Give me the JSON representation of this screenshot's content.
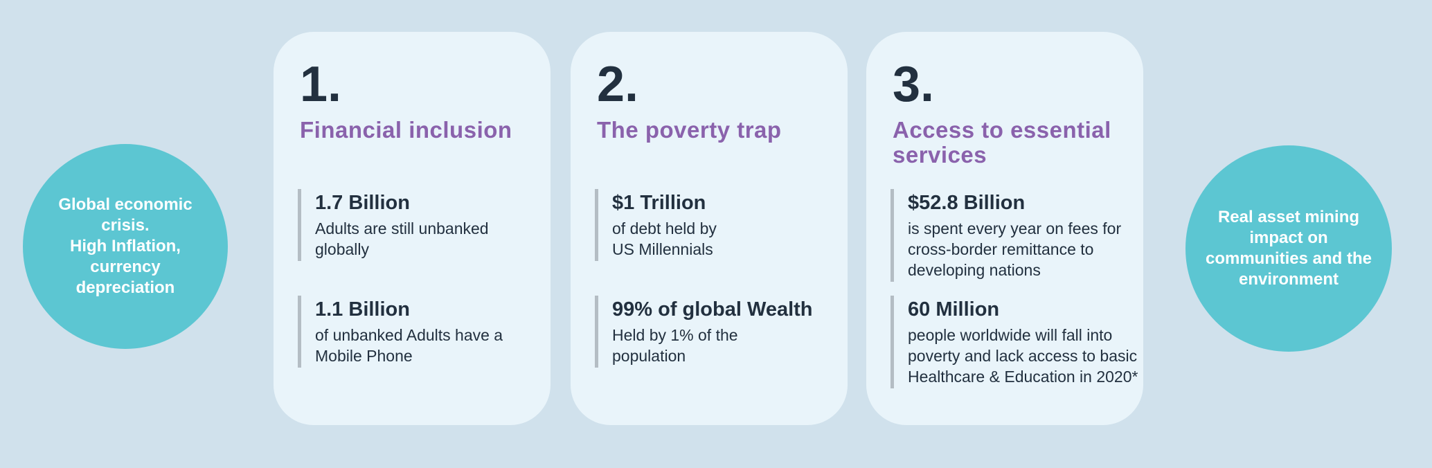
{
  "colors": {
    "bg": "#d0e1ec",
    "card": "#e9f4fa",
    "circle": "#5cc6d2",
    "circletext": "#ffffff",
    "heading": "#8a62ac",
    "ink": "#22303f",
    "bar": "#b4bdc4"
  },
  "left_circle": {
    "text": "Global economic\ncrisis.\nHigh Inflation,\ncurrency\ndepreciation"
  },
  "right_circle": {
    "text": "Real asset  mining\nimpact on\ncommunities and the\nenvironment"
  },
  "cards": [
    {
      "number": "1.",
      "title": "Financial inclusion",
      "stats": [
        {
          "value": "1.7 Billion",
          "desc": "Adults are still unbanked\nglobally"
        },
        {
          "value": "1.1 Billion",
          "desc": "of unbanked Adults have a\nMobile Phone"
        }
      ]
    },
    {
      "number": "2.",
      "title": "The poverty trap",
      "stats": [
        {
          "value": "$1 Trillion",
          "desc": "of debt held by\nUS Millennials"
        },
        {
          "value": "99% of global Wealth",
          "desc": "Held by 1% of the\npopulation"
        }
      ]
    },
    {
      "number": "3.",
      "title": "Access to essential\nservices",
      "stats": [
        {
          "value": "$52.8 Billion",
          "desc": "is spent every year on fees for\ncross-border remittance to\ndeveloping nations"
        },
        {
          "value": "60 Million",
          "desc": "people worldwide will fall into\npoverty and lack access to basic\nHealthcare & Education in 2020*"
        }
      ]
    }
  ]
}
